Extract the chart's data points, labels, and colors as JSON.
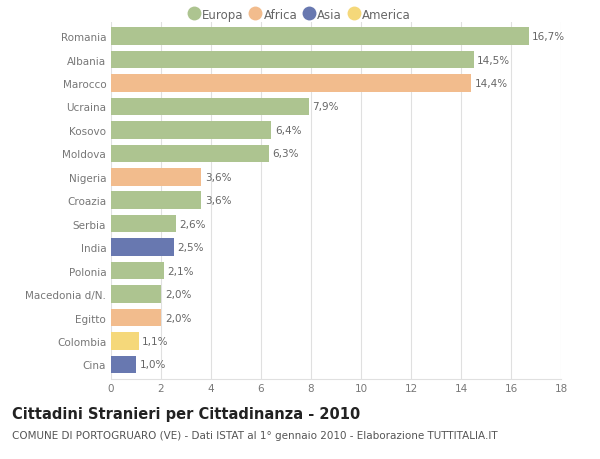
{
  "categories": [
    "Romania",
    "Albania",
    "Marocco",
    "Ucraina",
    "Kosovo",
    "Moldova",
    "Nigeria",
    "Croazia",
    "Serbia",
    "India",
    "Polonia",
    "Macedonia d/N.",
    "Egitto",
    "Colombia",
    "Cina"
  ],
  "values": [
    16.7,
    14.5,
    14.4,
    7.9,
    6.4,
    6.3,
    3.6,
    3.6,
    2.6,
    2.5,
    2.1,
    2.0,
    2.0,
    1.1,
    1.0
  ],
  "labels": [
    "16,7%",
    "14,5%",
    "14,4%",
    "7,9%",
    "6,4%",
    "6,3%",
    "3,6%",
    "3,6%",
    "2,6%",
    "2,5%",
    "2,1%",
    "2,0%",
    "2,0%",
    "1,1%",
    "1,0%"
  ],
  "continents": [
    "Europa",
    "Europa",
    "Africa",
    "Europa",
    "Europa",
    "Europa",
    "Africa",
    "Europa",
    "Europa",
    "Asia",
    "Europa",
    "Europa",
    "Africa",
    "America",
    "Asia"
  ],
  "colors": {
    "Europa": "#adc490",
    "Africa": "#f2bc8d",
    "Asia": "#6878b0",
    "America": "#f5d87a"
  },
  "legend_order": [
    "Europa",
    "Africa",
    "Asia",
    "America"
  ],
  "xlim": [
    0,
    18
  ],
  "xticks": [
    0,
    2,
    4,
    6,
    8,
    10,
    12,
    14,
    16,
    18
  ],
  "title": "Cittadini Stranieri per Cittadinanza - 2010",
  "subtitle": "COMUNE DI PORTOGRUARO (VE) - Dati ISTAT al 1° gennaio 2010 - Elaborazione TUTTITALIA.IT",
  "background_color": "#ffffff",
  "grid_color": "#e0e0e0",
  "bar_height": 0.75,
  "title_fontsize": 10.5,
  "subtitle_fontsize": 7.5,
  "label_fontsize": 7.5,
  "tick_fontsize": 7.5,
  "legend_fontsize": 8.5
}
